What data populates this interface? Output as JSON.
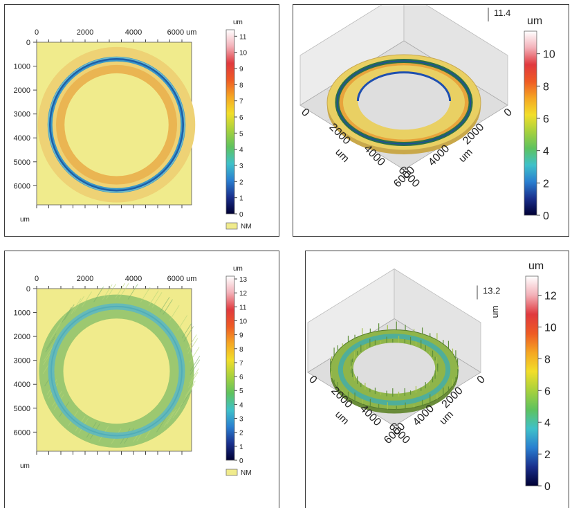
{
  "chart_data": [
    {
      "type": "heatmap",
      "panel": "top-left",
      "view": "2d",
      "unit_label": "um",
      "x_ticks": [
        "0",
        "2000",
        "4000",
        "6000"
      ],
      "x_unit": "um",
      "y_ticks": [
        "0",
        "1000",
        "2000",
        "3000",
        "4000",
        "5000",
        "6000"
      ],
      "y_unit": "um",
      "colorbar_ticks": [
        "0",
        "1",
        "2",
        "3",
        "4",
        "5",
        "6",
        "7",
        "8",
        "9",
        "10",
        "11"
      ],
      "colorbar_range": [
        0,
        11.4
      ],
      "legend": "NM",
      "ring": {
        "center_um": [
          3300,
          3450
        ],
        "outer_radius_um": 3250,
        "inner_radius_um": 2150,
        "groove_radius_um": 2750
      },
      "heights": {
        "pad_um": 7.0,
        "groove_um": 2.5,
        "inner_band_um": 7.8
      }
    },
    {
      "type": "heatmap",
      "panel": "top-right",
      "view": "3d",
      "unit_label": "um",
      "max_label": "11.4",
      "x_ticks": [
        "0",
        "2000",
        "4000",
        "6000"
      ],
      "y_ticks": [
        "0",
        "2000",
        "4000",
        "6000"
      ],
      "axis_label_left": "um",
      "axis_label_right": "um",
      "colorbar_ticks": [
        "0",
        "2",
        "4",
        "6",
        "8",
        "10"
      ],
      "colorbar_range": [
        0,
        11.4
      ]
    },
    {
      "type": "heatmap",
      "panel": "bottom-left",
      "view": "2d",
      "unit_label": "um",
      "x_ticks": [
        "0",
        "2000",
        "4000",
        "6000"
      ],
      "x_unit": "um",
      "y_ticks": [
        "0",
        "1000",
        "2000",
        "3000",
        "4000",
        "5000",
        "6000"
      ],
      "y_unit": "um",
      "colorbar_ticks": [
        "0",
        "1",
        "2",
        "3",
        "4",
        "5",
        "6",
        "7",
        "8",
        "9",
        "10",
        "11",
        "12",
        "13"
      ],
      "colorbar_range": [
        0,
        13.2
      ],
      "legend": "NM",
      "ring": {
        "center_um": [
          3300,
          3450
        ],
        "outer_radius_um": 3200,
        "inner_radius_um": 2200,
        "groove_radius_um": 2700
      },
      "heights": {
        "pad_um": 5.5,
        "groove_um": 4.2
      }
    },
    {
      "type": "heatmap",
      "panel": "bottom-right",
      "view": "3d",
      "unit_label": "um",
      "max_label": "13.2",
      "x_ticks": [
        "0",
        "2000",
        "4000",
        "6000"
      ],
      "y_ticks": [
        "0",
        "2000",
        "4000",
        "6000"
      ],
      "axis_label_left": "um",
      "axis_label_right": "um",
      "axis_label_vertical": "um",
      "colorbar_ticks": [
        "0",
        "2",
        "4",
        "6",
        "8",
        "10",
        "12"
      ],
      "colorbar_range": [
        0,
        13.2
      ]
    }
  ],
  "colors": {
    "background_fill": "#f0eb8c",
    "pad": "#e8c860",
    "groove": "#3a98c8",
    "groove_dark": "#1e5fa8",
    "inner_band": "#eab552",
    "noisy_pad": "#9cc870",
    "noisy_groove": "#5fb8c0",
    "floor": "#dedede",
    "colormap": [
      "#000033",
      "#1a2f8c",
      "#2a7fd0",
      "#3fc1c9",
      "#5ec25e",
      "#a7d13d",
      "#f2de2a",
      "#f5a623",
      "#ee5a24",
      "#e0393e",
      "#f3b0b8",
      "#ffffff"
    ]
  }
}
